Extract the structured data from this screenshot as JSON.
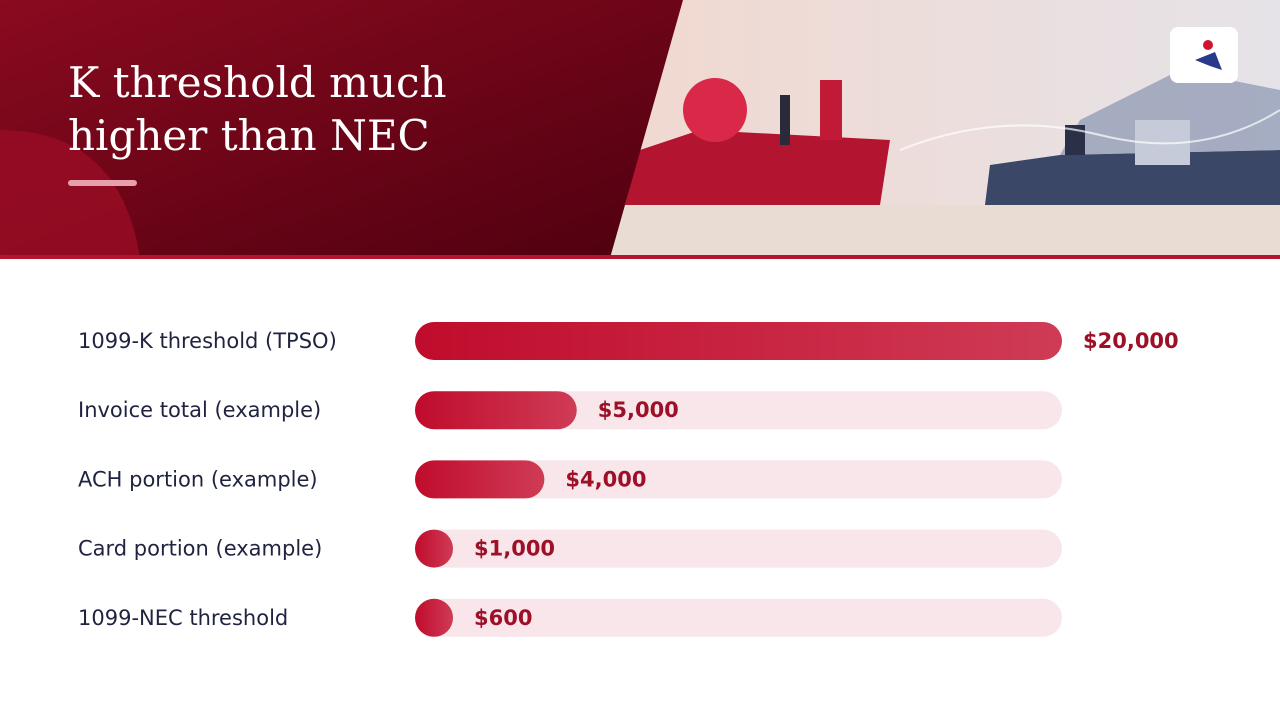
{
  "chart_data": {
    "type": "bar",
    "orientation": "horizontal",
    "title": "K threshold much higher than NEC",
    "categories": [
      "1099-K threshold (TPSO)",
      "Invoice total (example)",
      "ACH portion (example)",
      "Card portion (example)",
      "1099-NEC threshold"
    ],
    "values": [
      20000,
      5000,
      4000,
      1000,
      600
    ],
    "value_labels": [
      "$20,000",
      "$5,000",
      "$4,000",
      "$1,000",
      "$600"
    ],
    "color": "#c8102e",
    "xlim": [
      0,
      20000
    ]
  }
}
